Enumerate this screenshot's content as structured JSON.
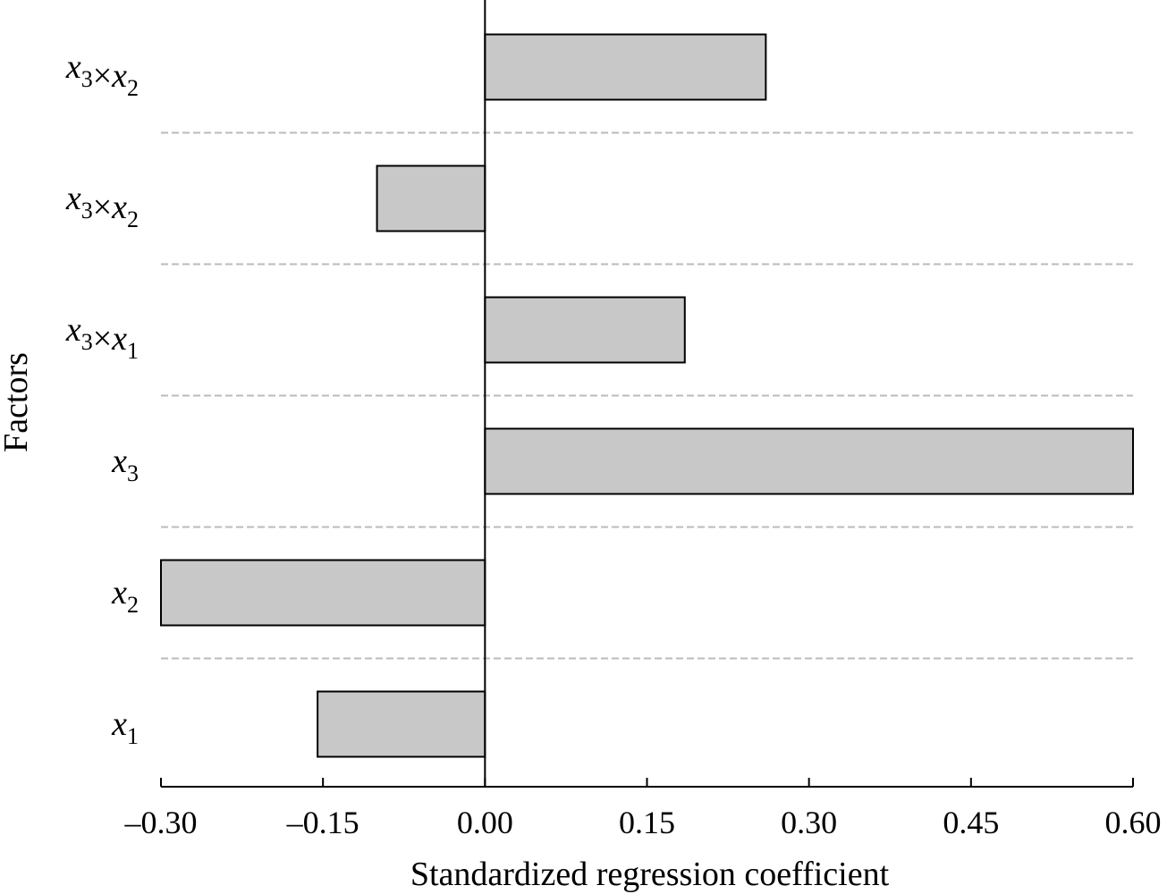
{
  "chart_data": {
    "type": "bar",
    "orientation": "horizontal",
    "categories": [
      "x1",
      "x2",
      "x3",
      "x3×x1",
      "x3×x2",
      "x3×x2"
    ],
    "category_labels": [
      {
        "parts": [
          {
            "t": "x",
            "sub": "1"
          }
        ]
      },
      {
        "parts": [
          {
            "t": "x",
            "sub": "2"
          }
        ]
      },
      {
        "parts": [
          {
            "t": "x",
            "sub": "3"
          }
        ]
      },
      {
        "parts": [
          {
            "t": "x",
            "sub": "3"
          },
          {
            "op": "×"
          },
          {
            "t": "x",
            "sub": "1"
          }
        ]
      },
      {
        "parts": [
          {
            "t": "x",
            "sub": "3"
          },
          {
            "op": "×"
          },
          {
            "t": "x",
            "sub": "2"
          }
        ]
      },
      {
        "parts": [
          {
            "t": "x",
            "sub": "3"
          },
          {
            "op": "×"
          },
          {
            "t": "x",
            "sub": "2"
          }
        ]
      }
    ],
    "values": [
      -0.155,
      -0.3,
      0.6,
      0.185,
      -0.1,
      0.26
    ],
    "xlabel": "Standardized regression coefficient",
    "ylabel": "Factors",
    "xlim": [
      -0.3,
      0.6
    ],
    "xticks": [
      -0.3,
      -0.15,
      0.0,
      0.15,
      0.3,
      0.45,
      0.6
    ],
    "xtick_labels": [
      "–0.30",
      "–0.15",
      "0.00",
      "0.15",
      "0.30",
      "0.45",
      "0.60"
    ],
    "grid": "dashed separators between categories",
    "bar_color": "#c8c8c8",
    "separator_color": "#bbbbbb"
  }
}
